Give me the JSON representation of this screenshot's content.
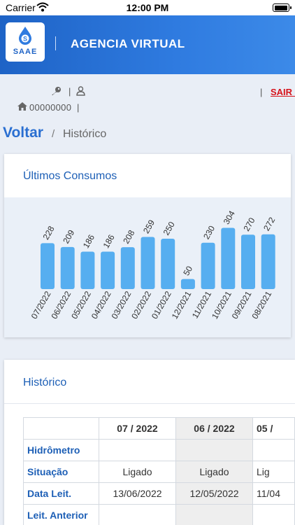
{
  "status": {
    "carrier": "Carrier",
    "time": "12:00 PM",
    "battery_level": 1.0
  },
  "header": {
    "logo_text": "SAAE",
    "title": "AGENCIA VIRTUAL"
  },
  "userbar": {
    "account_code": "00000000",
    "pipe": "|",
    "logout": "SAIR >"
  },
  "breadcrumb": {
    "back": "Voltar",
    "separator": "/",
    "current": "Histórico"
  },
  "consumption": {
    "title": "Últimos Consumos",
    "chart_data": {
      "type": "bar",
      "categories": [
        "07/2022",
        "06/2022",
        "05/2022",
        "04/2022",
        "03/2022",
        "02/2022",
        "01/2022",
        "12/2021",
        "11/2021",
        "10/2021",
        "09/2021",
        "08/2021"
      ],
      "values": [
        228,
        209,
        186,
        186,
        208,
        259,
        250,
        50,
        230,
        304,
        270,
        272
      ],
      "bar_color": "#56aef0",
      "ylim": [
        0,
        330
      ],
      "grid": false
    }
  },
  "history": {
    "title": "Histórico",
    "columns": [
      "07 / 2022",
      "06 / 2022",
      "05 /"
    ],
    "rows": [
      {
        "label": "Hidrômetro",
        "values": [
          "",
          "",
          ""
        ]
      },
      {
        "label": "Situação",
        "values": [
          "Ligado",
          "Ligado",
          "Lig"
        ]
      },
      {
        "label": "Data Leit.",
        "values": [
          "13/06/2022",
          "12/05/2022",
          "11/04"
        ]
      },
      {
        "label": "Leit. Anterior",
        "values": [
          "",
          "",
          ""
        ]
      }
    ]
  }
}
